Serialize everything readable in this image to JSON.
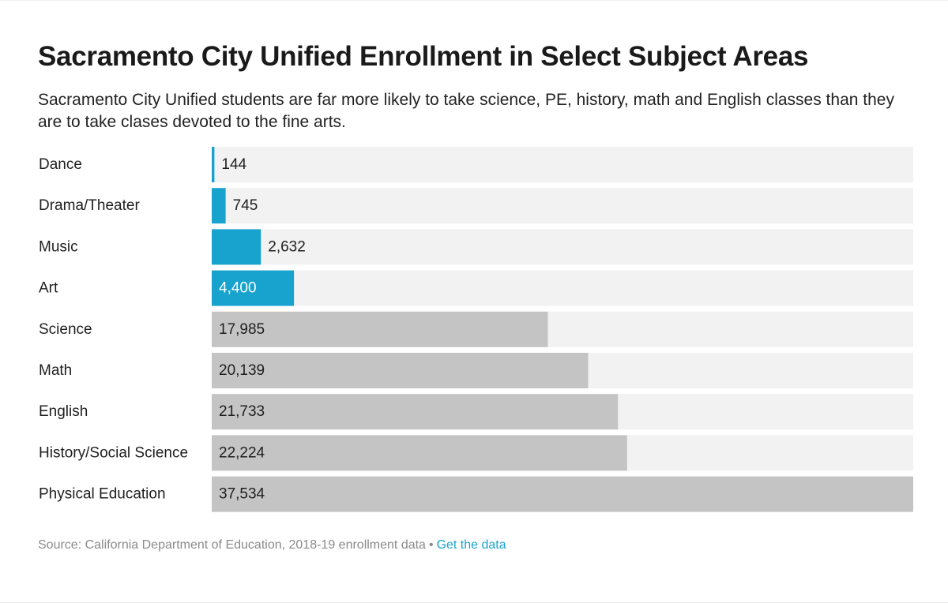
{
  "header": {
    "title": "Sacramento City Unified Enrollment in Select Subject Areas",
    "subtitle": "Sacramento City Unified students are far more likely to take science, PE, history, math and English classes than they are to take clases devoted to the fine arts."
  },
  "footer": {
    "source": "Source: California Department of Education, 2018-19 enrollment data",
    "separator": "•",
    "link_label": "Get the data"
  },
  "colors": {
    "arts_bar": "#18a3cf",
    "core_bar": "#c4c4c4",
    "track": "#f2f2f2",
    "link": "#1ba2cc"
  },
  "chart_data": {
    "type": "bar",
    "orientation": "horizontal",
    "categories": [
      "Dance",
      "Drama/Theater",
      "Music",
      "Art",
      "Science",
      "Math",
      "English",
      "History/Social Science",
      "Physical Education"
    ],
    "values": [
      144,
      745,
      2632,
      4400,
      17985,
      20139,
      21733,
      22224,
      37534
    ],
    "value_labels": [
      "144",
      "745",
      "2,632",
      "4,400",
      "17,985",
      "20,139",
      "21,733",
      "22,224",
      "37,534"
    ],
    "groups": [
      "arts",
      "arts",
      "arts",
      "arts",
      "core",
      "core",
      "core",
      "core",
      "core"
    ],
    "xlim": [
      0,
      37534
    ],
    "title": "Sacramento City Unified Enrollment in Select Subject Areas",
    "xlabel": "",
    "ylabel": "",
    "grid": false,
    "legend": "none"
  }
}
